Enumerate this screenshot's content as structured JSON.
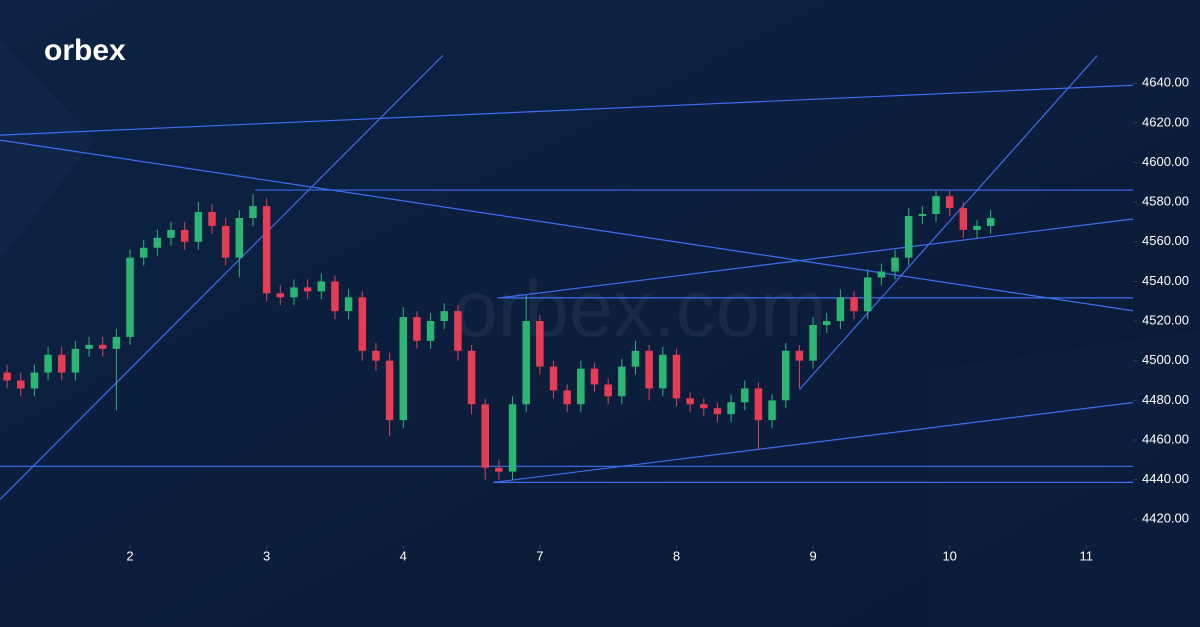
{
  "chart_data": {
    "type": "candlestick",
    "logo": "orbex",
    "watermark": "orbex.com",
    "x": [
      0.1,
      0.2,
      0.3,
      0.4,
      0.5,
      0.6,
      0.7,
      0.8,
      0.9,
      1.0,
      1.1,
      1.2,
      1.3,
      1.4,
      1.5,
      1.6,
      1.7,
      1.8,
      1.9,
      2.0,
      2.1,
      2.2,
      2.3,
      2.4,
      2.5,
      2.6,
      2.7,
      2.8,
      2.9,
      3.0,
      3.1,
      3.2,
      3.3,
      3.4,
      3.5,
      3.6,
      3.7,
      3.8,
      3.9,
      4.0,
      4.1,
      4.2,
      4.3,
      4.4,
      4.5,
      4.6,
      4.7,
      4.8,
      4.9,
      5.0,
      5.1,
      5.2,
      5.3,
      5.4,
      5.5,
      5.6,
      5.7,
      5.8,
      5.9,
      6.0,
      6.1,
      6.2,
      6.3,
      6.4,
      6.5,
      6.6,
      6.7,
      6.8,
      6.9,
      7.0,
      7.1,
      7.2,
      7.3
    ],
    "open": [
      4494,
      4490,
      4486,
      4494,
      4503,
      4494,
      4506,
      4508,
      4506,
      4512,
      4552,
      4557,
      4562,
      4566,
      4560,
      4575,
      4568,
      4552,
      4572,
      4578,
      4534,
      4532,
      4537,
      4535,
      4540,
      4525,
      4532,
      4505,
      4500,
      4470,
      4522,
      4510,
      4520,
      4525,
      4505,
      4478,
      4446,
      4444,
      4478,
      4520,
      4497,
      4485,
      4478,
      4496,
      4488,
      4482,
      4497,
      4505,
      4486,
      4503,
      4481,
      4478,
      4476,
      4473,
      4479,
      4486,
      4470,
      4480,
      4505,
      4500,
      4518,
      4520,
      4532,
      4525,
      4542,
      4545,
      4552,
      4573,
      4574,
      4583,
      4577,
      4566,
      4568
    ],
    "high": [
      4498,
      4494,
      4498,
      4507,
      4507,
      4510,
      4512,
      4512,
      4516,
      4556,
      4561,
      4566,
      4570,
      4570,
      4580,
      4579,
      4572,
      4576,
      4584,
      4582,
      4538,
      4541,
      4541,
      4544,
      4543,
      4536,
      4535,
      4509,
      4504,
      4527,
      4525,
      4524,
      4529,
      4528,
      4508,
      4481,
      4450,
      4482,
      4533,
      4523,
      4500,
      4488,
      4500,
      4499,
      4491,
      4501,
      4510,
      4508,
      4507,
      4506,
      4484,
      4481,
      4479,
      4483,
      4490,
      4489,
      4483,
      4509,
      4508,
      4522,
      4524,
      4536,
      4535,
      4546,
      4549,
      4556,
      4577,
      4578,
      4586,
      4586,
      4580,
      4571,
      4576
    ],
    "low": [
      4486,
      4482,
      4482,
      4490,
      4490,
      4490,
      4502,
      4502,
      4475,
      4508,
      4548,
      4553,
      4558,
      4556,
      4556,
      4564,
      4548,
      4542,
      4568,
      4530,
      4528,
      4528,
      4531,
      4531,
      4521,
      4521,
      4500,
      4495,
      4462,
      4466,
      4506,
      4506,
      4516,
      4500,
      4473,
      4440,
      4440,
      4440,
      4474,
      4493,
      4481,
      4474,
      4474,
      4484,
      4478,
      4478,
      4493,
      4480,
      4482,
      4477,
      4474,
      4472,
      4469,
      4469,
      4475,
      4455,
      4466,
      4476,
      4486,
      4496,
      4514,
      4516,
      4521,
      4521,
      4538,
      4541,
      4548,
      4569,
      4570,
      4573,
      4562,
      4562,
      4564
    ],
    "close": [
      4490,
      4486,
      4494,
      4503,
      4494,
      4506,
      4508,
      4506,
      4512,
      4552,
      4557,
      4562,
      4566,
      4560,
      4575,
      4568,
      4552,
      4572,
      4578,
      4534,
      4532,
      4537,
      4535,
      4540,
      4525,
      4532,
      4505,
      4500,
      4470,
      4522,
      4510,
      4520,
      4525,
      4505,
      4478,
      4446,
      4444,
      4478,
      4520,
      4497,
      4485,
      4478,
      4496,
      4488,
      4482,
      4497,
      4505,
      4486,
      4503,
      4481,
      4478,
      4476,
      4473,
      4479,
      4486,
      4470,
      4480,
      4505,
      4500,
      4518,
      4520,
      4532,
      4525,
      4542,
      4545,
      4552,
      4573,
      4574,
      4583,
      4577,
      4566,
      4568,
      4572
    ],
    "up_color": "#2bb673",
    "down_color": "#e63d55",
    "line_color": "#3d6ef0",
    "trendlines": [
      {
        "x": [
          0.048,
          8.342
        ],
        "y": [
          4613.8,
          4639
        ]
      },
      {
        "x": [
          0.048,
          8.342
        ],
        "y": [
          4611.3,
          4525.2
        ]
      },
      {
        "x": [
          1.915,
          8.342
        ],
        "y": [
          4586.1,
          4586.1
        ]
      },
      {
        "x": [
          0.048,
          3.29
        ],
        "y": [
          4430,
          4654
        ]
      },
      {
        "x": [
          3.69,
          8.342
        ],
        "y": [
          4531.7,
          4531.7
        ]
      },
      {
        "x": [
          3.71,
          8.342
        ],
        "y": [
          4531.7,
          4571.5
        ]
      },
      {
        "x": [
          0.048,
          8.342
        ],
        "y": [
          4446.7,
          4446.7
        ]
      },
      {
        "x": [
          3.66,
          8.342
        ],
        "y": [
          4438.6,
          4438.6
        ]
      },
      {
        "x": [
          3.66,
          8.342
        ],
        "y": [
          4438.6,
          4478.9
        ]
      },
      {
        "x": [
          5.9,
          8.08
        ],
        "y": [
          4485.4,
          4654
        ]
      }
    ],
    "xlim": [
      0.048,
      8.342
    ],
    "ylim": [
      4407,
      4682
    ],
    "xticks": [
      {
        "value": 1,
        "label": "2"
      },
      {
        "value": 2,
        "label": "3"
      },
      {
        "value": 3,
        "label": "4"
      },
      {
        "value": 4,
        "label": "7"
      },
      {
        "value": 5,
        "label": "8"
      },
      {
        "value": 6,
        "label": "9"
      },
      {
        "value": 7,
        "label": "10"
      },
      {
        "value": 8,
        "label": "11"
      }
    ],
    "yticks": [
      {
        "value": 4420,
        "label": "4420.00"
      },
      {
        "value": 4440,
        "label": "4440.00"
      },
      {
        "value": 4460,
        "label": "4460.00"
      },
      {
        "value": 4480,
        "label": "4480.00"
      },
      {
        "value": 4500,
        "label": "4500.00"
      },
      {
        "value": 4520,
        "label": "4520.00"
      },
      {
        "value": 4540,
        "label": "4540.00"
      },
      {
        "value": 4560,
        "label": "4560.00"
      },
      {
        "value": 4580,
        "label": "4580.00"
      },
      {
        "value": 4600,
        "label": "4600.00"
      },
      {
        "value": 4620,
        "label": "4620.00"
      },
      {
        "value": 4640,
        "label": "4640.00"
      }
    ]
  }
}
